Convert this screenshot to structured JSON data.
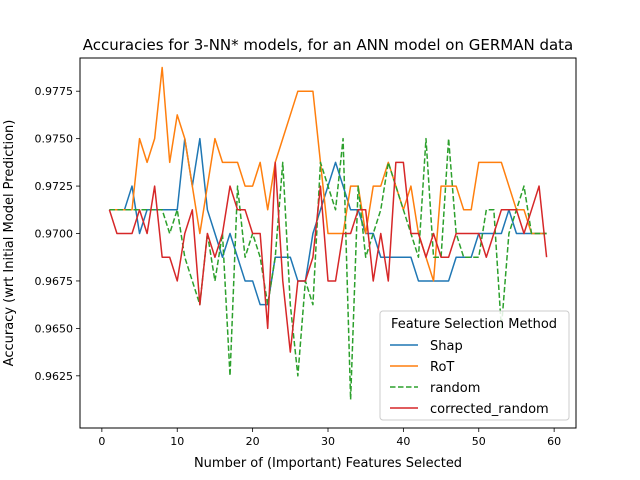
{
  "chart_data": {
    "type": "line",
    "title": "Accuracies for 3-NN* models, for an ANN model on GERMAN data",
    "xlabel": "Number of (Important) Features Selected",
    "ylabel": "Accuracy (wrt Initial Model Prediction)",
    "xlim": [
      -2.9,
      62.9
    ],
    "ylim": [
      0.95975,
      0.97925
    ],
    "xticks": [
      0,
      10,
      20,
      30,
      40,
      50,
      60
    ],
    "xtick_labels": [
      "0",
      "10",
      "20",
      "30",
      "40",
      "50",
      "60"
    ],
    "yticks": [
      0.9625,
      0.965,
      0.9675,
      0.97,
      0.9725,
      0.975,
      0.9775
    ],
    "ytick_labels": [
      "0.9625",
      "0.9650",
      "0.9675",
      "0.9700",
      "0.9725",
      "0.9750",
      "0.9775"
    ],
    "grid": false,
    "legend": {
      "title": "Feature Selection Method",
      "placement": "lower right"
    },
    "series": [
      {
        "name": "Shap",
        "color": "#1f77b4",
        "dash": "solid",
        "x": [
          1,
          2,
          3,
          4,
          5,
          6,
          7,
          8,
          9,
          10,
          11,
          12,
          13,
          14,
          15,
          16,
          17,
          18,
          19,
          20,
          21,
          22,
          23,
          24,
          25,
          26,
          27,
          28,
          29,
          30,
          31,
          32,
          33,
          34,
          35,
          36,
          37,
          38,
          39,
          40,
          41,
          42,
          43,
          44,
          45,
          46,
          47,
          48,
          49,
          50,
          51,
          52,
          53,
          54,
          55,
          56,
          57,
          58,
          59
        ],
        "values": [
          0.97125,
          0.97125,
          0.97125,
          0.9725,
          0.97,
          0.97125,
          0.97125,
          0.97125,
          0.97125,
          0.97125,
          0.975,
          0.9725,
          0.975,
          0.97125,
          0.97,
          0.96875,
          0.97,
          0.96875,
          0.9675,
          0.9675,
          0.96625,
          0.96625,
          0.96875,
          0.96875,
          0.96875,
          0.9675,
          0.9675,
          0.97,
          0.97125,
          0.9725,
          0.97375,
          0.9725,
          0.97125,
          0.97125,
          0.97,
          0.97,
          0.96875,
          0.96875,
          0.96875,
          0.96875,
          0.96875,
          0.9675,
          0.9675,
          0.9675,
          0.9675,
          0.9675,
          0.96875,
          0.96875,
          0.96875,
          0.97,
          0.97,
          0.97,
          0.97,
          0.97125,
          0.97,
          0.97,
          0.97,
          0.97,
          0.97
        ]
      },
      {
        "name": "RoT",
        "color": "#ff7f0e",
        "dash": "solid",
        "x": [
          1,
          2,
          3,
          4,
          5,
          6,
          7,
          8,
          9,
          10,
          11,
          12,
          13,
          14,
          15,
          16,
          17,
          18,
          19,
          20,
          21,
          22,
          23,
          24,
          25,
          26,
          27,
          28,
          29,
          30,
          31,
          32,
          33,
          34,
          35,
          36,
          37,
          38,
          39,
          40,
          41,
          42,
          43,
          44,
          45,
          46,
          47,
          48,
          49,
          50,
          51,
          52,
          53,
          54,
          55,
          56,
          57,
          58,
          59
        ],
        "values": [
          0.97125,
          0.97125,
          0.97125,
          0.97125,
          0.975,
          0.97375,
          0.975,
          0.97875,
          0.97375,
          0.97625,
          0.975,
          0.9725,
          0.97,
          0.9725,
          0.975,
          0.97375,
          0.97375,
          0.97375,
          0.9725,
          0.9725,
          0.97375,
          0.97125,
          0.97375,
          0.975,
          0.97625,
          0.9775,
          0.9775,
          0.9775,
          0.97375,
          0.97,
          0.97,
          0.97,
          0.9725,
          0.9725,
          0.97,
          0.9725,
          0.9725,
          0.97375,
          0.9725,
          0.97125,
          0.9725,
          0.97,
          0.96875,
          0.9675,
          0.9725,
          0.9725,
          0.9725,
          0.97125,
          0.97125,
          0.97375,
          0.97375,
          0.97375,
          0.97375,
          0.9725,
          0.97125,
          0.97125,
          0.97,
          0.97,
          0.97
        ]
      },
      {
        "name": "random",
        "color": "#2ca02c",
        "dash": "dashed",
        "x": [
          1,
          2,
          3,
          4,
          5,
          6,
          7,
          8,
          9,
          10,
          11,
          12,
          13,
          14,
          15,
          16,
          17,
          18,
          19,
          20,
          21,
          22,
          23,
          24,
          25,
          26,
          27,
          28,
          29,
          30,
          31,
          32,
          33,
          34,
          35,
          36,
          37,
          38,
          39,
          40,
          41,
          42,
          43,
          44,
          45,
          46,
          47,
          48,
          49,
          50,
          51,
          52,
          53,
          54,
          55,
          56,
          57,
          58,
          59
        ],
        "values": [
          0.97125,
          0.97125,
          0.97125,
          0.97125,
          0.97125,
          0.97125,
          0.97125,
          0.97125,
          0.97,
          0.97125,
          0.96875,
          0.9675,
          0.96625,
          0.97,
          0.9675,
          0.97,
          0.9625,
          0.9725,
          0.96875,
          0.97,
          0.96875,
          0.96625,
          0.96875,
          0.97375,
          0.96625,
          0.9625,
          0.9675,
          0.96625,
          0.97375,
          0.9725,
          0.97125,
          0.975,
          0.96125,
          0.9725,
          0.96875,
          0.97,
          0.97125,
          0.97375,
          0.9725,
          0.97125,
          0.97,
          0.96875,
          0.975,
          0.96875,
          0.96875,
          0.975,
          0.97,
          0.96875,
          0.96875,
          0.96875,
          0.97125,
          0.97125,
          0.965,
          0.97,
          0.97125,
          0.9725,
          0.97,
          0.97,
          0.97
        ]
      },
      {
        "name": "corrected_random",
        "color": "#d62728",
        "dash": "solid",
        "x": [
          1,
          2,
          3,
          4,
          5,
          6,
          7,
          8,
          9,
          10,
          11,
          12,
          13,
          14,
          15,
          16,
          17,
          18,
          19,
          20,
          21,
          22,
          23,
          24,
          25,
          26,
          27,
          28,
          29,
          30,
          31,
          32,
          33,
          34,
          35,
          36,
          37,
          38,
          39,
          40,
          41,
          42,
          43,
          44,
          45,
          46,
          47,
          48,
          49,
          50,
          51,
          52,
          53,
          54,
          55,
          56,
          57,
          58,
          59
        ],
        "values": [
          0.97125,
          0.97,
          0.97,
          0.97,
          0.97125,
          0.97,
          0.9725,
          0.96875,
          0.96875,
          0.9675,
          0.97,
          0.97125,
          0.96625,
          0.97,
          0.96875,
          0.97,
          0.9725,
          0.97125,
          0.97125,
          0.97,
          0.97,
          0.965,
          0.97375,
          0.9675,
          0.96375,
          0.9675,
          0.9675,
          0.96875,
          0.9725,
          0.9675,
          0.9675,
          0.97,
          0.97,
          0.97125,
          0.97125,
          0.9675,
          0.97,
          0.9675,
          0.97375,
          0.97375,
          0.97,
          0.97,
          0.96875,
          0.97,
          0.96875,
          0.96875,
          0.97,
          0.97,
          0.97,
          0.97,
          0.96875,
          0.97,
          0.97125,
          0.97125,
          0.97125,
          0.97,
          0.97125,
          0.9725,
          0.96875
        ]
      }
    ]
  }
}
